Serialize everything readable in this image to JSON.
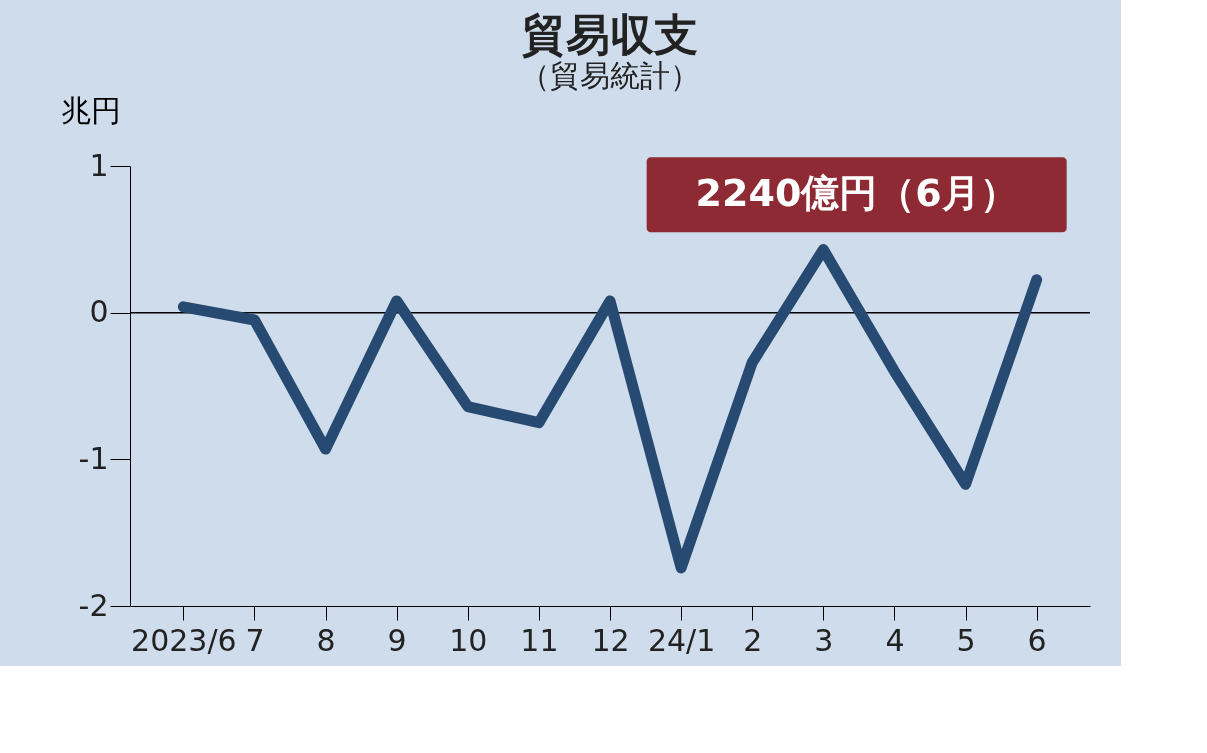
{
  "chart_data": {
    "type": "line",
    "title": "貿易収支",
    "subtitle": "（貿易統計）",
    "ylabel": "兆円",
    "categories": [
      "2023/6",
      "7",
      "8",
      "9",
      "10",
      "11",
      "12",
      "24/1",
      "2",
      "3",
      "4",
      "5",
      "6"
    ],
    "series": [
      {
        "color": "#274a72",
        "values": [
          0.04,
          -0.05,
          -0.93,
          0.08,
          -0.64,
          -0.75,
          0.08,
          -1.74,
          -0.34,
          0.43,
          -0.4,
          -1.17,
          0.224
        ]
      }
    ],
    "ylim": [
      -2,
      1
    ],
    "yticks": [
      -2,
      -1,
      0,
      1
    ],
    "ref_lines": [
      {
        "axis": "y",
        "value": 0,
        "color": "#000000"
      }
    ],
    "annotations": [
      {
        "text": "2240億円（6月）",
        "x": "6",
        "y": 0.224
      }
    ],
    "grid": false,
    "marker": "none",
    "line_style": "solid"
  }
}
